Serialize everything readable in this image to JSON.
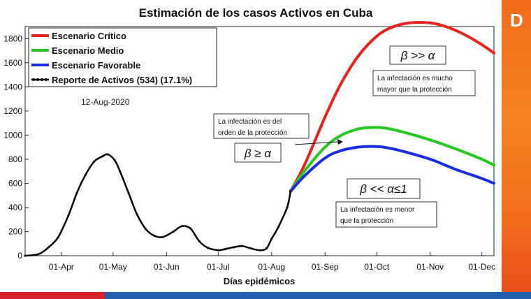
{
  "chart_data": {
    "type": "line",
    "title": "Estimación de los casos Activos en Cuba",
    "xlabel": "Días epidémicos",
    "ylabel": "",
    "ylim": [
      0,
      1900
    ],
    "yticks": [
      0,
      200,
      400,
      600,
      800,
      1000,
      1200,
      1400,
      1600,
      1800
    ],
    "xticks": [
      {
        "label": "01-Apr",
        "date": "2020-04-01"
      },
      {
        "label": "01-May",
        "date": "2020-05-01"
      },
      {
        "label": "01-Jun",
        "date": "2020-06-01"
      },
      {
        "label": "01-Jul",
        "date": "2020-07-01"
      },
      {
        "label": "01-Aug",
        "date": "2020-08-01"
      },
      {
        "label": "01-Sep",
        "date": "2020-09-01"
      },
      {
        "label": "01-Oct",
        "date": "2020-10-01"
      },
      {
        "label": "01-Nov",
        "date": "2020-11-01"
      },
      {
        "label": "01-Dec",
        "date": "2020-12-01"
      }
    ],
    "xlim": [
      "2020-03-11",
      "2020-12-08"
    ],
    "date_label": "12-Aug-2020",
    "legend_position": "top-left",
    "series": [
      {
        "name": "Escenario Crítico",
        "color": "#e8231d",
        "x": [
          "2020-08-12",
          "2020-08-20",
          "2020-09-01",
          "2020-09-10",
          "2020-09-20",
          "2020-10-01",
          "2020-10-10",
          "2020-10-20",
          "2020-11-01",
          "2020-11-10",
          "2020-11-20",
          "2020-12-01",
          "2020-12-08"
        ],
        "y": [
          534,
          750,
          1150,
          1420,
          1650,
          1820,
          1895,
          1930,
          1930,
          1900,
          1840,
          1750,
          1680
        ]
      },
      {
        "name": "Escenario Medio",
        "color": "#26c81e",
        "x": [
          "2020-08-12",
          "2020-08-20",
          "2020-09-01",
          "2020-09-10",
          "2020-09-20",
          "2020-09-28",
          "2020-10-05",
          "2020-10-15",
          "2020-11-01",
          "2020-11-15",
          "2020-12-01",
          "2020-12-08"
        ],
        "y": [
          534,
          700,
          900,
          995,
          1050,
          1063,
          1060,
          1030,
          960,
          890,
          800,
          750
        ]
      },
      {
        "name": "Escenario Favorable",
        "color": "#1a2ee0",
        "x": [
          "2020-08-12",
          "2020-08-20",
          "2020-09-01",
          "2020-09-10",
          "2020-09-20",
          "2020-09-28",
          "2020-10-05",
          "2020-10-15",
          "2020-11-01",
          "2020-11-15",
          "2020-12-01",
          "2020-12-08"
        ],
        "y": [
          534,
          660,
          810,
          870,
          900,
          906,
          900,
          870,
          800,
          720,
          640,
          600
        ]
      },
      {
        "name": "Reporte de Activos (534) (17.1%)",
        "color": "#000000",
        "x": [
          "2020-03-11",
          "2020-03-16",
          "2020-03-20",
          "2020-03-25",
          "2020-03-30",
          "2020-04-05",
          "2020-04-10",
          "2020-04-15",
          "2020-04-20",
          "2020-04-25",
          "2020-04-28",
          "2020-05-02",
          "2020-05-05",
          "2020-05-10",
          "2020-05-15",
          "2020-05-20",
          "2020-05-25",
          "2020-05-30",
          "2020-06-05",
          "2020-06-10",
          "2020-06-15",
          "2020-06-20",
          "2020-06-25",
          "2020-07-01",
          "2020-07-05",
          "2020-07-10",
          "2020-07-15",
          "2020-07-20",
          "2020-07-25",
          "2020-07-29",
          "2020-08-01",
          "2020-08-05",
          "2020-08-10",
          "2020-08-12"
        ],
        "y": [
          0,
          5,
          20,
          75,
          150,
          330,
          520,
          670,
          780,
          825,
          840,
          790,
          700,
          520,
          340,
          220,
          165,
          155,
          200,
          245,
          225,
          120,
          65,
          45,
          55,
          70,
          80,
          60,
          45,
          60,
          140,
          240,
          400,
          534
        ]
      }
    ],
    "annotations": [
      {
        "text": "La infectación es mucho mayor que la protección",
        "lines": [
          "La infectación es mucho",
          "mayor que la protección"
        ],
        "condition": "β >> α"
      },
      {
        "text": "La infectación es del orden de la protección",
        "lines": [
          "La infectación es del",
          "orden de la protección"
        ],
        "condition": "β ≥ α"
      },
      {
        "text": "La infectación es menor que la protección",
        "lines": [
          "La infectación es menor",
          "que la protección"
        ],
        "condition": "β << α≤1"
      }
    ]
  }
}
